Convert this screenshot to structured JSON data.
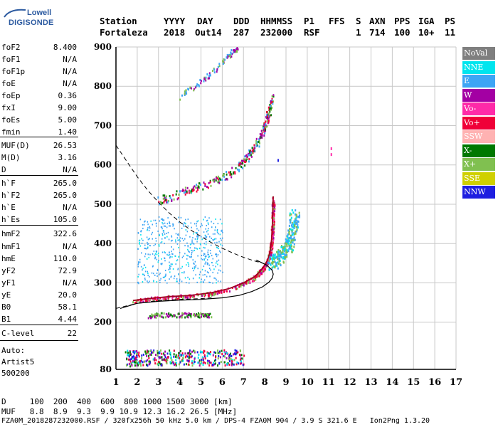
{
  "logo": {
    "line1": "Lowell",
    "line2": "DIGISONDE"
  },
  "header": {
    "labels": [
      "Station",
      "YYYY",
      "DAY",
      "DDD",
      "HHMMSS",
      "P1",
      "FFS",
      "S",
      "AXN",
      "PPS",
      "IGA",
      "PS"
    ],
    "values": [
      "Fortaleza",
      "2018",
      "Out14",
      "287",
      "232000",
      "RSF",
      "",
      "1",
      "714",
      "100",
      "10+",
      "11"
    ]
  },
  "params": [
    {
      "key": "foF2",
      "value": "8.400"
    },
    {
      "key": "foF1",
      "value": "N/A"
    },
    {
      "key": "foF1p",
      "value": "N/A"
    },
    {
      "key": "foE",
      "value": "N/A"
    },
    {
      "key": "foEp",
      "value": "0.36"
    },
    {
      "key": "fxI",
      "value": "9.00"
    },
    {
      "key": "foEs",
      "value": "5.00"
    },
    {
      "key": "fmin",
      "value": "1.40"
    },
    {
      "key": "MUF(D)",
      "value": "26.53"
    },
    {
      "key": "M(D)",
      "value": "3.16"
    },
    {
      "key": "D",
      "value": "N/A"
    },
    {
      "key": "h`F",
      "value": "265.0"
    },
    {
      "key": "h`F2",
      "value": "265.0"
    },
    {
      "key": "h`E",
      "value": "N/A"
    },
    {
      "key": "h`Es",
      "value": "105.0"
    },
    {
      "key": "hmF2",
      "value": "322.6"
    },
    {
      "key": "hmF1",
      "value": "N/A"
    },
    {
      "key": "hmE",
      "value": "110.0"
    },
    {
      "key": "yF2",
      "value": "72.9"
    },
    {
      "key": "yF1",
      "value": "N/A"
    },
    {
      "key": "yE",
      "value": "20.0"
    },
    {
      "key": "B0",
      "value": "58.1"
    },
    {
      "key": "B1",
      "value": "4.44"
    },
    {
      "key": "C-level",
      "value": "22"
    }
  ],
  "auto": {
    "line1": "Auto:",
    "line2": "Artist5",
    "line3": "500200"
  },
  "legend": [
    {
      "label": "NoVal",
      "color": "#7f7f7f"
    },
    {
      "label": "NNE",
      "color": "#00e5ee"
    },
    {
      "label": "E",
      "color": "#3da5f5"
    },
    {
      "label": "W",
      "color": "#a300a3"
    },
    {
      "label": "Vo-",
      "color": "#ff2aa8"
    },
    {
      "label": "Vo+",
      "color": "#f00038"
    },
    {
      "label": "SSW",
      "color": "#ffb2b2"
    },
    {
      "label": "X-",
      "color": "#007800"
    },
    {
      "label": "X+",
      "color": "#80c050"
    },
    {
      "label": "SSE",
      "color": "#d0d000"
    },
    {
      "label": "NNW",
      "color": "#1e1ee0"
    }
  ],
  "footer": {
    "row1_label": "D",
    "row1_values": [
      "100",
      "200",
      "400",
      "600",
      "800",
      "1000",
      "1500",
      "3000"
    ],
    "row1_unit": "[km]",
    "row2_label": "MUF",
    "row2_values": [
      "8.8",
      "8.9",
      "9.3",
      "9.9",
      "10.9",
      "12.3",
      "16.2",
      "26.5"
    ],
    "row2_unit": "[MHz]",
    "file_line": "FZA0M_2018287232000.RSF / 320fx256h 50 kHz 5.0 km / DPS-4 FZA0M 904 / 3.9 S 321.6 E   Ion2Png 1.3.20"
  },
  "chart_data": {
    "type": "scatter",
    "xlim": [
      1,
      17
    ],
    "ylim": [
      80,
      900
    ],
    "x_ticks": [
      1,
      2,
      3,
      4,
      5,
      6,
      7,
      8,
      9,
      10,
      11,
      12,
      13,
      14,
      15,
      16,
      17
    ],
    "y_ticks": [
      80,
      200,
      300,
      400,
      500,
      600,
      700,
      800,
      900
    ],
    "grid": true,
    "trace_f2_o": {
      "x": [
        1.8,
        2.5,
        3.5,
        4.5,
        5.5,
        6.3,
        7.0,
        7.5,
        7.8,
        8.0,
        8.15,
        8.25,
        8.32,
        8.36,
        8.38,
        8.4
      ],
      "y": [
        255,
        260,
        265,
        268,
        275,
        285,
        300,
        315,
        330,
        345,
        360,
        380,
        410,
        450,
        490,
        520
      ]
    },
    "trace_f2_x": {
      "x": [
        8.3,
        8.6,
        8.9,
        9.1,
        9.3,
        9.4
      ],
      "y": [
        350,
        365,
        380,
        400,
        430,
        480
      ]
    },
    "trace_f2_multi": {
      "x": [
        3.0,
        4.0,
        5.0,
        6.0,
        6.8,
        7.3,
        7.7,
        8.0,
        8.2,
        8.35
      ],
      "y": [
        510,
        530,
        548,
        570,
        600,
        630,
        665,
        700,
        740,
        780
      ]
    },
    "trace_f2_third": {
      "x": [
        4.0,
        5.0,
        5.8,
        6.3,
        6.7
      ],
      "y": [
        775,
        815,
        850,
        880,
        900
      ]
    },
    "trace_es": {
      "x": [
        1.5,
        2.0,
        3.0,
        4.0,
        5.0,
        6.0,
        7.0
      ],
      "y": [
        110,
        110,
        112,
        112,
        110,
        112,
        112
      ]
    },
    "trace_es2": {
      "x": [
        2.5,
        3.0,
        4.0,
        5.0,
        5.4
      ],
      "y": [
        218,
        220,
        220,
        220,
        220
      ]
    },
    "profile_curve": {
      "x": [
        1.2,
        2.0,
        3.0,
        4.0,
        5.0,
        6.0,
        6.8,
        7.4,
        7.9,
        8.2,
        8.35,
        8.4,
        8.35,
        8.1,
        7.6
      ],
      "y": [
        235,
        248,
        253,
        256,
        258,
        262,
        268,
        278,
        290,
        302,
        312,
        322,
        332,
        345,
        358
      ]
    },
    "dashed_curve": {
      "x": [
        1.0,
        1.5,
        2.0,
        2.5,
        3.0,
        3.5,
        4.0,
        4.5,
        5.0,
        5.5,
        6.0,
        6.5,
        7.0,
        7.5,
        7.9
      ],
      "y": [
        650,
        610,
        570,
        535,
        505,
        478,
        455,
        435,
        418,
        402,
        388,
        376,
        365,
        356,
        350
      ]
    },
    "dashed_low": {
      "x": [
        1.0,
        2.0,
        3.0,
        4.0,
        5.0,
        5.5
      ],
      "y": [
        235,
        248,
        255,
        258,
        260,
        262
      ]
    },
    "diffuse_cloud": {
      "x_range": [
        2.0,
        6.0
      ],
      "y_range": [
        300,
        470
      ]
    },
    "isolated_points": {
      "x": [
        11.1,
        11.1,
        8.6
      ],
      "y": [
        645,
        630,
        615
      ]
    }
  }
}
